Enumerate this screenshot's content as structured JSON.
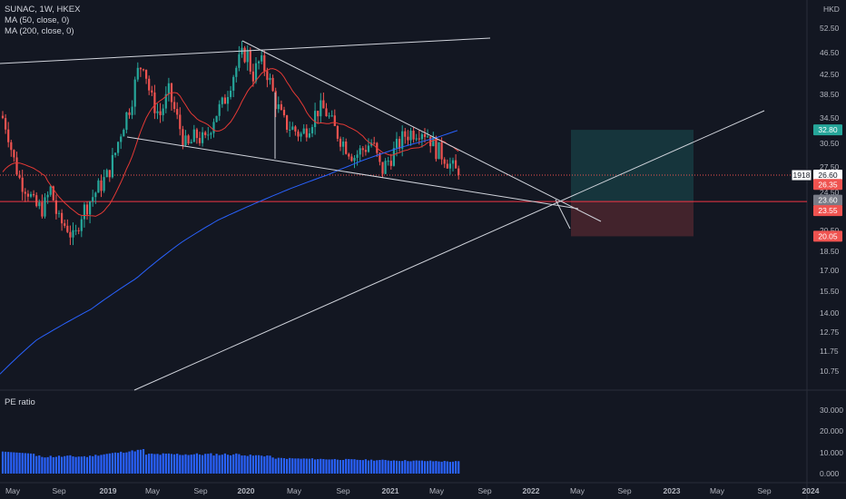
{
  "header": {
    "symbol_line": "SUNAC, 1W, HKEX",
    "ma50_label": "MA (50, close, 0)",
    "ma200_label": "MA (200, close, 0)",
    "currency": "HKD"
  },
  "pe_panel": {
    "title": "PE ratio",
    "y_ticks": [
      "30.000",
      "20.000",
      "10.000",
      "0.000"
    ]
  },
  "colors": {
    "background": "#131722",
    "up": "#26a69a",
    "down": "#ef5350",
    "ma50": "#e53935",
    "ma200": "#2962ff",
    "pe_bars": "#2962ff",
    "trendline": "#d1d4dc",
    "target_zone": "#26a69a",
    "stop_zone": "#ef5350"
  },
  "chart_data": {
    "type": "candlestick",
    "price_axis_ticks": [
      "52.50",
      "46.50",
      "42.50",
      "38.50",
      "34.50",
      "30.50",
      "27.50",
      "24.50",
      "20.50",
      "18.50",
      "17.00",
      "15.50",
      "14.00",
      "12.75",
      "11.75",
      "10.75"
    ],
    "time_axis_ticks": [
      "May",
      "Sep",
      "2019",
      "May",
      "Sep",
      "2020",
      "May",
      "Sep",
      "2021",
      "May",
      "Sep",
      "2022",
      "May",
      "Sep",
      "2023",
      "May",
      "Sep",
      "2024"
    ],
    "price_labels": [
      {
        "text": "32.80",
        "color": "#26a69a"
      },
      {
        "text": "26.60",
        "color": "#ffffff",
        "countdown": "1918"
      },
      {
        "text": "26.35",
        "color": "#ef5350"
      },
      {
        "text": "23.60",
        "color": "#787b86"
      },
      {
        "text": "23.55",
        "color": "#ef5350"
      },
      {
        "text": "20.05",
        "color": "#ef5350"
      }
    ],
    "last_price": 26.6,
    "entry_level": 23.6,
    "horizontal_red_line": 23.55,
    "target_level": 32.8,
    "stop_level": 20.05,
    "scale": "log",
    "pe_ylim": [
      0,
      35
    ]
  }
}
